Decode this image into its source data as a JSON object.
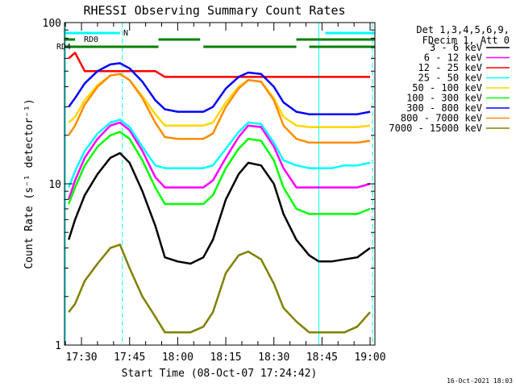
{
  "chart_data": {
    "type": "line",
    "title": "RHESSI Observing Summary Count Rates",
    "xlabel": "Start Time (08-Oct-07 17:24:42)",
    "ylabel": "Count Rate (s⁻¹ detector⁻¹)",
    "y_scale": "log",
    "ylim": [
      1,
      100
    ],
    "xlim": [
      "17:24:42",
      "19:01:30"
    ],
    "y_ticks": [
      {
        "value": 1,
        "label": "1"
      },
      {
        "value": 10,
        "label": "10"
      },
      {
        "value": 100,
        "label": "100"
      }
    ],
    "x_ticks": [
      {
        "value": "17:30",
        "label": "17:30"
      },
      {
        "value": "17:45",
        "label": "17:45"
      },
      {
        "value": "18:00",
        "label": "18:00"
      },
      {
        "value": "18:15",
        "label": "18:15"
      },
      {
        "value": "18:30",
        "label": "18:30"
      },
      {
        "value": "18:45",
        "label": "18:45"
      },
      {
        "value": "19:00",
        "label": "19:00"
      }
    ],
    "legend_header": [
      "Det 1,3,4,5,6,9,",
      "FDecim 1, Att 0"
    ],
    "legend_position": "right",
    "footer_date": "16-Oct-2021 18:03",
    "flags": [
      {
        "label": "N",
        "color": "#00ffff",
        "intervals": [
          [
            "17:24:42",
            "17:42:00"
          ],
          [
            "18:46:00",
            "19:01:30"
          ]
        ]
      },
      {
        "label": "RD0",
        "color": "#008000",
        "intervals": [
          [
            "17:24:42",
            "17:28:00"
          ],
          [
            "17:54:00",
            "18:07:00"
          ],
          [
            "18:37:00",
            "19:01:30"
          ]
        ]
      },
      {
        "label": "RD4",
        "color": "#008000",
        "intervals": [
          [
            "17:24:42",
            "17:54:00"
          ],
          [
            "18:08:00",
            "18:37:00"
          ],
          [
            "18:41:00",
            "19:01:30"
          ]
        ]
      }
    ],
    "vlines": [
      {
        "time": "17:25:00",
        "color": "#00ffff",
        "style": "solid"
      },
      {
        "time": "17:42:45",
        "color": "#00ffff",
        "style": "dashed"
      },
      {
        "time": "18:44:00",
        "color": "#00ffff",
        "style": "solid"
      },
      {
        "time": "19:00:45",
        "color": "#00ffff",
        "style": "dashed"
      }
    ],
    "x": [
      "17:26",
      "17:28",
      "17:31",
      "17:35",
      "17:39",
      "17:42",
      "17:45",
      "17:49",
      "17:53",
      "17:56",
      "18:00",
      "18:04",
      "18:08",
      "18:11",
      "18:15",
      "18:19",
      "18:22",
      "18:26",
      "18:30",
      "18:33",
      "18:37",
      "18:41",
      "18:44",
      "18:48",
      "18:52",
      "18:56",
      "19:00"
    ],
    "series": [
      {
        "name": "3 - 6 keV",
        "color": "#000000",
        "values": [
          4.5,
          6.0,
          8.5,
          11.5,
          14.5,
          15.5,
          13.5,
          9.0,
          5.5,
          3.5,
          3.3,
          3.2,
          3.5,
          4.5,
          8.0,
          11.5,
          13.5,
          13.0,
          10.0,
          6.5,
          4.5,
          3.6,
          3.3,
          3.3,
          3.4,
          3.5,
          4.0
        ]
      },
      {
        "name": "6 - 12 keV",
        "color": "#ff00ff",
        "values": [
          8.0,
          10.5,
          14.5,
          19.0,
          23.0,
          24.0,
          21.5,
          16.0,
          11.0,
          9.5,
          9.5,
          9.5,
          9.5,
          10.5,
          14.5,
          19.5,
          23.0,
          22.5,
          17.0,
          12.5,
          9.5,
          9.5,
          9.5,
          9.5,
          9.5,
          9.5,
          10.0
        ]
      },
      {
        "name": "12 - 25 keV",
        "color": "#ff0000",
        "values": [
          60.0,
          65.0,
          50.0,
          50.0,
          50.0,
          50.0,
          50.0,
          50.0,
          50.0,
          46.0,
          46.0,
          46.0,
          46.0,
          46.0,
          46.0,
          46.0,
          46.0,
          46.0,
          46.0,
          46.0,
          46.0,
          46.0,
          46.0,
          46.0,
          46.0,
          46.0,
          46.0
        ]
      },
      {
        "name": "25 - 50 keV",
        "color": "#00ffff",
        "values": [
          9.5,
          12.0,
          16.0,
          20.5,
          24.0,
          25.0,
          22.5,
          17.0,
          13.0,
          12.5,
          12.5,
          12.5,
          12.5,
          13.0,
          16.5,
          21.0,
          24.0,
          23.5,
          18.0,
          14.0,
          13.0,
          12.5,
          12.5,
          12.5,
          13.0,
          13.0,
          13.5
        ]
      },
      {
        "name": "50 - 100 keV",
        "color": "#ffd700",
        "values": [
          24.0,
          26.0,
          33.0,
          41.0,
          47.0,
          48.0,
          44.0,
          35.0,
          27.0,
          23.0,
          23.0,
          23.0,
          23.0,
          24.0,
          32.0,
          40.0,
          44.0,
          43.0,
          34.0,
          26.0,
          23.0,
          22.5,
          22.5,
          22.5,
          22.5,
          22.5,
          23.0
        ]
      },
      {
        "name": "100 - 300 keV",
        "color": "#00ff00",
        "values": [
          7.5,
          9.5,
          13.0,
          17.0,
          20.0,
          21.0,
          19.0,
          14.0,
          9.5,
          7.5,
          7.5,
          7.5,
          7.5,
          8.5,
          12.5,
          16.5,
          19.0,
          18.5,
          14.0,
          9.5,
          7.0,
          6.5,
          6.5,
          6.5,
          6.5,
          6.5,
          7.0
        ]
      },
      {
        "name": "300 - 800 keV",
        "color": "#0000ff",
        "values": [
          30.0,
          34.0,
          42.0,
          50.0,
          55.0,
          56.0,
          52.0,
          43.0,
          33.0,
          29.0,
          28.0,
          28.0,
          28.0,
          30.0,
          39.0,
          46.0,
          49.0,
          48.0,
          40.0,
          32.0,
          28.0,
          27.0,
          27.0,
          27.0,
          27.0,
          27.0,
          28.0
        ]
      },
      {
        "name": "800 - 7000 keV",
        "color": "#ff8c00",
        "values": [
          20.0,
          23.0,
          31.0,
          40.0,
          47.0,
          48.0,
          44.0,
          34.0,
          24.0,
          19.5,
          19.0,
          19.0,
          19.0,
          20.5,
          30.0,
          39.0,
          44.0,
          43.0,
          33.0,
          23.0,
          19.0,
          18.0,
          18.0,
          18.0,
          18.0,
          18.0,
          18.5
        ]
      },
      {
        "name": "7000 - 15000 keV",
        "color": "#808000",
        "values": [
          1.6,
          1.8,
          2.5,
          3.2,
          4.0,
          4.2,
          3.0,
          2.0,
          1.5,
          1.2,
          1.2,
          1.2,
          1.3,
          1.6,
          2.8,
          3.6,
          3.8,
          3.4,
          2.4,
          1.7,
          1.4,
          1.2,
          1.2,
          1.2,
          1.2,
          1.3,
          1.6
        ]
      }
    ]
  }
}
